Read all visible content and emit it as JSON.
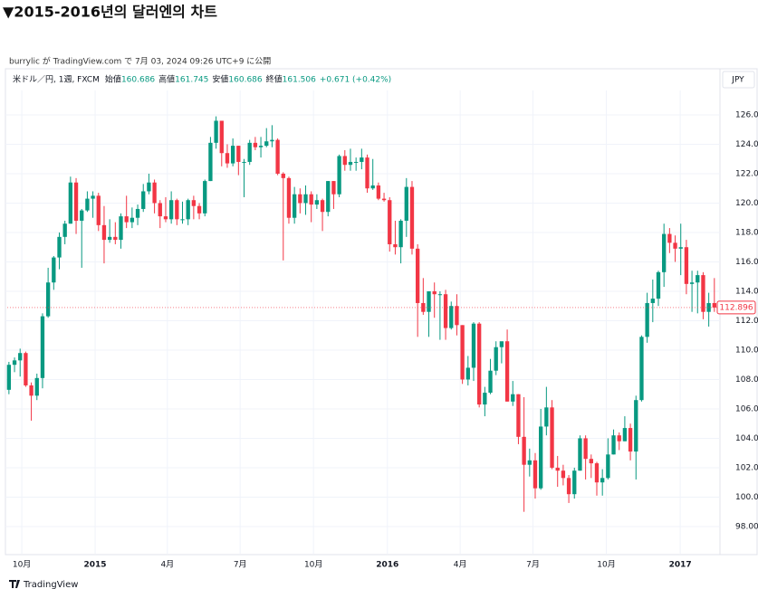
{
  "header": {
    "title": "▼2015-2016년의 달러엔의 차트",
    "credit": "burrylic が TradingView.com で 7月 03, 2024 09:26 UTC+9 に公開"
  },
  "legend": {
    "symbol": "米ドル／円, 1週, FXCM",
    "items": [
      {
        "label": "始値",
        "value": "160.686"
      },
      {
        "label": "高値",
        "value": "161.745"
      },
      {
        "label": "安値",
        "value": "160.686"
      },
      {
        "label": "終値",
        "value": "161.506"
      }
    ],
    "change": "+0.671 (+0.42%)"
  },
  "currency": "JPY",
  "footer": "TradingView",
  "chart_data": {
    "type": "candlestick",
    "up_color": "#089981",
    "down_color": "#f23645",
    "grid": true,
    "categories": [
      null,
      null,
      null,
      null,
      null,
      null,
      null,
      null,
      null,
      null,
      null,
      null,
      null,
      null,
      null,
      null,
      null,
      null,
      null,
      null,
      null,
      null,
      null,
      null,
      null,
      null,
      null,
      null,
      null,
      null,
      null,
      null,
      null,
      null,
      null,
      null,
      null,
      null,
      null,
      null,
      null,
      null,
      null,
      null,
      null,
      null,
      null,
      null,
      null,
      null,
      null,
      null,
      null,
      null,
      null,
      null,
      null,
      null,
      null,
      null,
      null,
      null,
      null,
      null,
      null,
      null,
      null,
      null,
      null,
      null,
      null,
      null,
      null,
      null,
      null,
      null,
      null,
      null,
      null,
      null,
      null,
      null,
      null,
      null,
      null,
      null,
      null,
      null,
      null,
      null,
      null,
      null,
      null,
      null,
      null,
      null,
      null,
      null,
      null,
      null,
      null,
      null,
      null,
      null,
      null,
      null,
      null,
      null,
      null,
      null,
      null,
      null,
      null,
      null,
      null,
      null,
      null,
      null,
      null,
      null,
      null,
      null,
      null,
      null,
      null,
      null,
      null
    ],
    "open": [
      107.3,
      109.0,
      109.3,
      109.8,
      107.6,
      106.9,
      108.1,
      112.3,
      114.6,
      116.3,
      117.7,
      118.6,
      121.4,
      118.8,
      119.5,
      120.3,
      120.5,
      118.5,
      117.5,
      117.7,
      117.5,
      119.1,
      118.7,
      119.0,
      119.6,
      120.8,
      121.4,
      120.0,
      119.1,
      118.9,
      120.2,
      118.9,
      118.9,
      120.2,
      119.8,
      119.3,
      121.5,
      124.1,
      125.6,
      123.4,
      122.7,
      123.9,
      122.8,
      122.8,
      124.1,
      123.8,
      123.9,
      124.2,
      124.3,
      122.0,
      121.7,
      119.0,
      120.6,
      120.0,
      120.6,
      119.9,
      120.2,
      119.4,
      121.5,
      120.6,
      123.2,
      122.6,
      122.8,
      122.8,
      123.1,
      121.0,
      121.2,
      120.3,
      120.2,
      117.2,
      117.0,
      118.8,
      121.1,
      116.9,
      113.2,
      112.6,
      114.0,
      113.8,
      113.8,
      111.5,
      113.0,
      111.7,
      108.0,
      108.8,
      111.8,
      106.3,
      107.1,
      108.6,
      110.2,
      110.6,
      106.5,
      107.0,
      104.1,
      102.2,
      102.5,
      100.6,
      104.8,
      106.1,
      102.0,
      101.8,
      101.3,
      100.2,
      101.8,
      104.0,
      102.6,
      102.3,
      101.0,
      101.3,
      102.9,
      104.2,
      103.8,
      104.7,
      103.1,
      106.6,
      110.9,
      113.2,
      113.5,
      115.3,
      117.9,
      117.3,
      116.9,
      117.0,
      114.5,
      114.6,
      115.1,
      112.6,
      113.2
    ],
    "high": [
      109.2,
      109.5,
      110.1,
      109.9,
      107.8,
      108.4,
      112.5,
      115.6,
      116.4,
      118.0,
      118.8,
      121.8,
      121.7,
      119.6,
      120.8,
      120.8,
      120.7,
      119.8,
      118.9,
      118.7,
      119.3,
      120.5,
      119.7,
      119.9,
      121.3,
      122.0,
      121.6,
      120.2,
      120.4,
      120.8,
      120.3,
      120.1,
      120.3,
      120.5,
      120.0,
      121.6,
      124.5,
      125.9,
      125.6,
      124.0,
      124.4,
      123.9,
      123.0,
      124.3,
      124.5,
      124.5,
      125.1,
      125.3,
      124.4,
      122.1,
      121.8,
      121.1,
      121.0,
      121.2,
      120.8,
      120.6,
      120.3,
      121.5,
      121.5,
      123.3,
      123.6,
      123.7,
      123.1,
      123.7,
      123.3,
      123.0,
      121.4,
      120.7,
      120.4,
      118.8,
      118.9,
      121.7,
      121.5,
      117.2,
      114.9,
      114.0,
      114.6,
      114.0,
      114.1,
      113.3,
      113.8,
      111.7,
      109.6,
      111.9,
      111.9,
      107.5,
      109.4,
      110.6,
      110.5,
      111.4,
      107.9,
      107.0,
      106.8,
      103.3,
      103.0,
      106.0,
      107.5,
      106.6,
      102.8,
      102.2,
      101.5,
      102.0,
      104.2,
      104.2,
      102.9,
      102.4,
      101.9,
      104.0,
      104.6,
      104.4,
      105.5,
      105.0,
      106.9,
      111.0,
      113.9,
      114.8,
      115.4,
      118.6,
      118.3,
      117.8,
      118.6,
      117.5,
      115.4,
      115.4,
      115.3,
      113.9,
      114.9
    ],
    "low": [
      107.0,
      108.5,
      108.2,
      107.5,
      105.2,
      106.6,
      107.4,
      112.2,
      114.1,
      115.5,
      117.2,
      118.6,
      117.9,
      115.6,
      119.4,
      119.0,
      118.1,
      115.9,
      117.3,
      117.2,
      116.9,
      118.3,
      118.3,
      118.5,
      119.4,
      120.6,
      119.3,
      118.3,
      118.7,
      118.6,
      118.5,
      118.6,
      118.5,
      118.9,
      118.9,
      119.1,
      121.5,
      123.7,
      122.5,
      122.4,
      122.5,
      121.9,
      120.4,
      122.6,
      123.6,
      123.1,
      123.8,
      123.8,
      121.9,
      116.1,
      118.6,
      118.6,
      119.3,
      119.2,
      118.7,
      119.6,
      118.1,
      119.1,
      119.6,
      120.4,
      122.2,
      122.2,
      122.2,
      122.3,
      120.7,
      120.9,
      120.2,
      120.1,
      116.7,
      116.5,
      115.9,
      117.7,
      116.5,
      110.9,
      112.4,
      110.9,
      112.2,
      110.7,
      110.7,
      111.4,
      111.0,
      107.7,
      107.6,
      107.9,
      106.1,
      105.5,
      107.0,
      108.3,
      109.1,
      106.5,
      106.2,
      103.6,
      99.0,
      101.4,
      99.9,
      100.5,
      104.2,
      101.9,
      100.7,
      100.8,
      99.6,
      99.9,
      101.8,
      101.2,
      101.3,
      100.1,
      100.1,
      101.2,
      102.9,
      103.2,
      103.8,
      102.5,
      101.2,
      106.5,
      110.5,
      111.9,
      113.0,
      114.3,
      116.6,
      116.0,
      115.1,
      113.8,
      112.6,
      112.5,
      112.1,
      111.6,
      112.6
    ],
    "close": [
      109.0,
      109.3,
      109.8,
      107.6,
      106.9,
      108.1,
      112.3,
      114.6,
      116.3,
      117.7,
      118.6,
      121.4,
      118.8,
      119.5,
      120.3,
      120.5,
      118.5,
      117.5,
      117.7,
      117.5,
      119.1,
      118.7,
      119.0,
      119.6,
      120.8,
      121.4,
      120.0,
      119.1,
      118.9,
      120.2,
      118.9,
      118.9,
      120.2,
      119.8,
      119.3,
      121.5,
      124.1,
      125.6,
      123.4,
      122.7,
      123.9,
      122.8,
      122.8,
      124.1,
      123.8,
      123.9,
      124.2,
      124.3,
      122.0,
      121.7,
      119.0,
      120.6,
      120.0,
      120.6,
      119.9,
      120.2,
      119.4,
      121.5,
      120.6,
      123.2,
      122.6,
      122.8,
      122.8,
      123.1,
      121.0,
      121.2,
      120.3,
      120.2,
      117.2,
      117.0,
      118.8,
      121.1,
      116.9,
      113.2,
      112.6,
      114.0,
      113.8,
      113.8,
      111.5,
      113.0,
      111.7,
      108.0,
      108.8,
      111.8,
      106.3,
      107.1,
      108.6,
      110.2,
      110.6,
      106.5,
      107.0,
      104.1,
      102.2,
      102.5,
      100.6,
      104.8,
      106.1,
      102.0,
      101.8,
      101.3,
      100.2,
      101.8,
      104.0,
      102.6,
      102.3,
      101.0,
      101.3,
      102.9,
      104.2,
      103.8,
      104.7,
      103.1,
      106.6,
      110.9,
      113.2,
      113.5,
      115.3,
      117.9,
      117.3,
      116.9,
      117.0,
      114.5,
      114.6,
      115.1,
      112.6,
      113.2,
      112.896
    ],
    "xlim": [
      -0.3,
      127.0
    ],
    "xticks": [
      {
        "value": 2.3,
        "label": "10月"
      },
      {
        "value": 15.4,
        "label": "2015"
      },
      {
        "value": 28.3,
        "label": "4月"
      },
      {
        "value": 41.3,
        "label": "7月"
      },
      {
        "value": 54.4,
        "label": "10月"
      },
      {
        "value": 67.6,
        "label": "2016"
      },
      {
        "value": 80.6,
        "label": "4月"
      },
      {
        "value": 93.6,
        "label": "7月"
      },
      {
        "value": 106.7,
        "label": "10月"
      },
      {
        "value": 119.9,
        "label": "2017"
      }
    ],
    "ylim": [
      96.15,
      127.66
    ],
    "yticks": [
      {
        "value": 98,
        "label": "98.000"
      },
      {
        "value": 100,
        "label": "100.000"
      },
      {
        "value": 102,
        "label": "102.000"
      },
      {
        "value": 104,
        "label": "104.000"
      },
      {
        "value": 106,
        "label": "106.000"
      },
      {
        "value": 108,
        "label": "108.000"
      },
      {
        "value": 110,
        "label": "110.000"
      },
      {
        "value": 112,
        "label": "112.000"
      },
      {
        "value": 114,
        "label": "114.000"
      },
      {
        "value": 116,
        "label": "116.000"
      },
      {
        "value": 118,
        "label": "118.000"
      },
      {
        "value": 120,
        "label": "120.000"
      },
      {
        "value": 122,
        "label": "122.000"
      },
      {
        "value": 124,
        "label": "124.000"
      },
      {
        "value": 126,
        "label": "126.000"
      }
    ]
  }
}
